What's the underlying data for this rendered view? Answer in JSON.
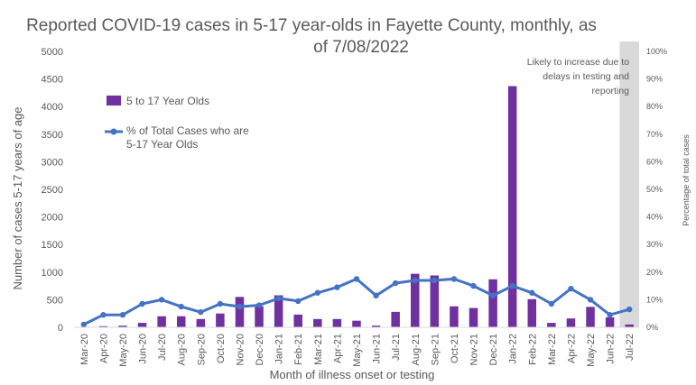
{
  "chart_data": {
    "type": "bar+line",
    "title_lines": [
      "Reported COVID-19 cases in 5-17 year-olds in Fayette County, monthly, as",
      "of 7/08/2022"
    ],
    "xlabel": "Month of illness onset or testing",
    "ylabel": "Number of cases 5-17 years of age",
    "y2label": "Percentage of total cases",
    "categories": [
      "Mar-20",
      "Apr-20",
      "May-20",
      "Jun-20",
      "Jul-20",
      "Aug-20",
      "Sep-20",
      "Oct-20",
      "Nov-20",
      "Dec-20",
      "Jan-21",
      "Feb-21",
      "Mar-21",
      "Apr-21",
      "May-21",
      "Jun-21",
      "Jul-21",
      "Aug-21",
      "Sep-21",
      "Oct-21",
      "Nov-21",
      "Dec-21",
      "Jan-22",
      "Feb-22",
      "Mar-22",
      "Apr-22",
      "May-22",
      "Jun-22",
      "Jul-22"
    ],
    "ylim": [
      0,
      5000
    ],
    "y_ticks": [
      "0",
      "500",
      "1000",
      "1500",
      "2000",
      "2500",
      "3000",
      "3500",
      "4000",
      "4500",
      "5000"
    ],
    "y2lim": [
      0,
      100
    ],
    "y2_ticks": [
      "0%",
      "10%",
      "20%",
      "30%",
      "40%",
      "50%",
      "60%",
      "70%",
      "80%",
      "90%",
      "100%"
    ],
    "series": [
      {
        "name": "5 to 17 Year Olds",
        "type": "bar",
        "axis": "left",
        "color": "#7030A0",
        "values": [
          5,
          20,
          30,
          80,
          200,
          200,
          150,
          250,
          550,
          380,
          580,
          230,
          150,
          150,
          120,
          30,
          280,
          970,
          940,
          380,
          350,
          870,
          4370,
          510,
          80,
          160,
          370,
          180,
          50
        ]
      },
      {
        "name": "% of Total Cases who are 5-17 Year Olds",
        "type": "line",
        "axis": "right",
        "color": "#4472C4",
        "values": [
          1,
          4.5,
          4.5,
          8.5,
          10,
          7.5,
          5.5,
          8.5,
          7.5,
          8,
          10.5,
          9.5,
          12.5,
          14.5,
          17.5,
          11.5,
          16,
          17,
          17,
          17.5,
          15,
          11.5,
          15,
          12.5,
          8.5,
          14,
          10,
          4.5,
          6.5
        ]
      }
    ],
    "highlight": {
      "category": "Jul-22",
      "color": "#D9D9D9"
    },
    "annotation": [
      "Likely to increase due to",
      "delays in testing and",
      "reporting"
    ]
  }
}
